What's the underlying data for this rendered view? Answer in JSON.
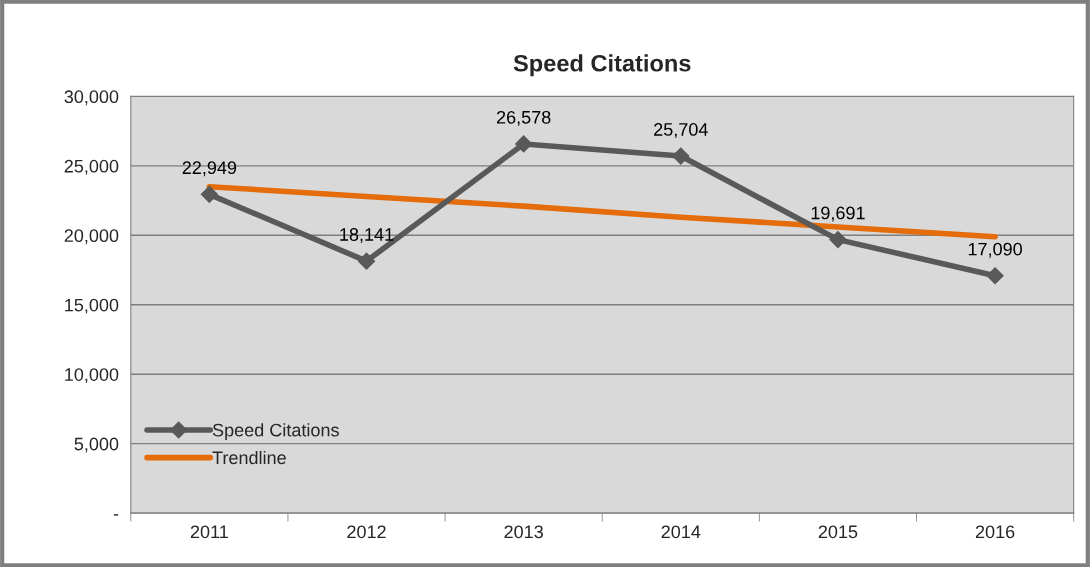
{
  "chart_data": {
    "type": "line",
    "title": "Speed Citations",
    "categories": [
      "2011",
      "2012",
      "2013",
      "2014",
      "2015",
      "2016"
    ],
    "series": [
      {
        "name": "Speed Citations",
        "color": "#595959",
        "marker": "diamond",
        "values": [
          22949,
          18141,
          26578,
          25704,
          19691,
          17090
        ],
        "value_labels": [
          "22,949",
          "18,141",
          "26,578",
          "25,704",
          "19,691",
          "17,090"
        ]
      },
      {
        "name": "Trendline",
        "color": "#e46c0a",
        "marker": "none",
        "values": [
          23500,
          22800,
          22100,
          21300,
          20600,
          19900
        ]
      }
    ],
    "ylim": [
      0,
      30000
    ],
    "yticks": [
      {
        "value": 0,
        "label": "-"
      },
      {
        "value": 5000,
        "label": "5,000"
      },
      {
        "value": 10000,
        "label": "10,000"
      },
      {
        "value": 15000,
        "label": "15,000"
      },
      {
        "value": 20000,
        "label": "20,000"
      },
      {
        "value": 25000,
        "label": "25,000"
      },
      {
        "value": 30000,
        "label": "30,000"
      }
    ],
    "grid": "y",
    "legend": "bottom left",
    "line_style": "solid"
  }
}
